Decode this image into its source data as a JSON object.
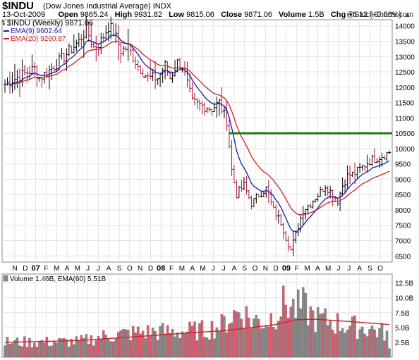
{
  "header": {
    "symbol": "$INDU",
    "name": "(Dow Jones Industrial Average) INDX",
    "date": "13-Oct-2009",
    "open_label": "Open",
    "open": "9865.24",
    "high_label": "High",
    "high": "9931.82",
    "low_label": "Low",
    "low": "9815.06",
    "close_label": "Close",
    "close": "9871.06",
    "volume_label": "Volume",
    "volume": "1.5B",
    "chg_label": "Chg",
    "chg": "+6.12 (+0.06%)",
    "watermark": "@StockCharts.com"
  },
  "chart_data": [
    {
      "type": "ohlc",
      "legend": [
        {
          "label": "$INDU (Weekly) 9871.06",
          "color": "#000000"
        },
        {
          "label": "EMA(9) 9602.64",
          "color": "#1a1aa0"
        },
        {
          "label": "EMA(20) 9260.87",
          "color": "#cc2222"
        }
      ],
      "ylim": [
        6300,
        14200
      ],
      "yticks": [
        6500,
        7000,
        7500,
        8000,
        8500,
        9000,
        9500,
        10000,
        10500,
        11000,
        11500,
        12000,
        12500,
        13000,
        13500,
        14000
      ],
      "x_labels": [
        "N",
        "D",
        "07",
        "F",
        "M",
        "A",
        "M",
        "J",
        "J",
        "A",
        "S",
        "O",
        "N",
        "D",
        "08",
        "F",
        "M",
        "A",
        "M",
        "J",
        "J",
        "A",
        "S",
        "O",
        "N",
        "D",
        "09",
        "F",
        "M",
        "A",
        "M",
        "J",
        "J",
        "A",
        "S",
        "O"
      ],
      "x_label_bold": [
        "07",
        "08",
        "09"
      ],
      "horizontal_line": {
        "value": 10500,
        "color": "#1a7a1a"
      },
      "price_path": [
        [
          0,
          12100
        ],
        [
          8,
          12450
        ],
        [
          12,
          12600
        ],
        [
          14,
          12300
        ],
        [
          18,
          12550
        ],
        [
          24,
          13000
        ],
        [
          30,
          13500
        ],
        [
          33,
          13900
        ],
        [
          36,
          13300
        ],
        [
          39,
          13500
        ],
        [
          42,
          14000
        ],
        [
          44,
          13800
        ],
        [
          47,
          13200
        ],
        [
          50,
          13300
        ],
        [
          54,
          12700
        ],
        [
          58,
          12300
        ],
        [
          62,
          12300
        ],
        [
          65,
          12700
        ],
        [
          67,
          12300
        ],
        [
          70,
          12800
        ],
        [
          72,
          12700
        ],
        [
          76,
          11500
        ],
        [
          80,
          11400
        ],
        [
          84,
          11300
        ],
        [
          87,
          11500
        ],
        [
          90,
          10900
        ],
        [
          92,
          9300
        ],
        [
          94,
          8500
        ],
        [
          97,
          8800
        ],
        [
          100,
          8200
        ],
        [
          103,
          8500
        ],
        [
          106,
          8700
        ],
        [
          109,
          8000
        ],
        [
          112,
          7600
        ],
        [
          114,
          7100
        ],
        [
          116,
          6700
        ],
        [
          118,
          7200
        ],
        [
          121,
          8000
        ],
        [
          124,
          8200
        ],
        [
          127,
          8500
        ],
        [
          130,
          8800
        ],
        [
          133,
          8500
        ],
        [
          135,
          8300
        ],
        [
          137,
          8800
        ],
        [
          139,
          9100
        ],
        [
          142,
          9200
        ],
        [
          145,
          9400
        ],
        [
          148,
          9600
        ],
        [
          151,
          9700
        ],
        [
          154,
          9800
        ],
        [
          156,
          9871
        ]
      ],
      "ema9_last": 9602.64,
      "ema20_last": 9260.87
    },
    {
      "type": "bar",
      "legend": [
        {
          "label": "Volume 1.46B,",
          "color": "#888888"
        },
        {
          "label": "EMA(60) 5.51B",
          "color": "#cc2222"
        }
      ],
      "ylim": [
        0,
        14
      ],
      "yticks_labels": [
        "2.5B",
        "5.0B",
        "7.5B",
        "10.0B",
        "12.5B"
      ],
      "yticks": [
        2.5,
        5.0,
        7.5,
        10.0,
        12.5
      ],
      "volume_path": [
        [
          0,
          2.5
        ],
        [
          30,
          2.6
        ],
        [
          40,
          3.5
        ],
        [
          55,
          4.2
        ],
        [
          70,
          4.3
        ],
        [
          80,
          4.5
        ],
        [
          88,
          5.3
        ],
        [
          92,
          7.0
        ],
        [
          96,
          7.8
        ],
        [
          100,
          6.3
        ],
        [
          106,
          6.0
        ],
        [
          110,
          7.5
        ],
        [
          114,
          9.2
        ],
        [
          118,
          8.0
        ],
        [
          121,
          8.5
        ],
        [
          126,
          6.5
        ],
        [
          132,
          6.0
        ],
        [
          140,
          5.2
        ],
        [
          148,
          4.8
        ],
        [
          155,
          4.0
        ],
        [
          156,
          1.46
        ]
      ],
      "ema60_path": [
        [
          0,
          2.5
        ],
        [
          30,
          2.8
        ],
        [
          55,
          3.5
        ],
        [
          75,
          4.1
        ],
        [
          90,
          4.5
        ],
        [
          100,
          5.0
        ],
        [
          110,
          5.5
        ],
        [
          118,
          6.3
        ],
        [
          126,
          6.4
        ],
        [
          140,
          6.0
        ],
        [
          156,
          5.5
        ]
      ]
    }
  ]
}
